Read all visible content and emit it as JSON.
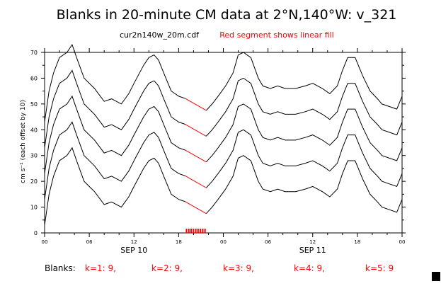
{
  "header": {
    "title": "Blanks in 20-minute CM data at 2°N,140°W: v_321",
    "filename": "cur2n140w_20m.cdf",
    "note": "Red segment shows linear fill"
  },
  "colors": {
    "trace": "#000000",
    "fill": "#ff0000",
    "axis": "#000000",
    "background": "#ffffff"
  },
  "footer": {
    "prefix": "Blanks:",
    "items": [
      "k=1: 9,",
      "k=2: 9,",
      "k=3: 9,",
      "k=4: 9,",
      "k=5: 9"
    ]
  },
  "chart_data": {
    "type": "line",
    "title": "Blanks in 20-minute CM data at 2°N,140°W: v_321",
    "ylabel": "cm s⁻¹ (each offset by 10)",
    "xlabel": "",
    "ylim": [
      0,
      70
    ],
    "xlim_hours": [
      0,
      48
    ],
    "y_ticks": [
      0,
      10,
      20,
      30,
      40,
      50,
      60,
      70
    ],
    "x_tick_hours": [
      0,
      6,
      12,
      18,
      24,
      30,
      36,
      42,
      48
    ],
    "x_tick_labels": [
      "00",
      "06",
      "12",
      "18",
      "00",
      "06",
      "12",
      "18",
      "00"
    ],
    "date_labels": [
      {
        "label": "SEP 10",
        "hour": 12
      },
      {
        "label": "SEP 11",
        "hour": 36
      }
    ],
    "blank_interval_hours": [
      18.9,
      21.7
    ],
    "gap_marker_count": 9,
    "base_curve": {
      "x": [
        0,
        0.6,
        1.2,
        2,
        3,
        3.7,
        4.3,
        5.3,
        6.7,
        8,
        9,
        10.3,
        11.3,
        12,
        13.3,
        14,
        14.7,
        15.3,
        16,
        17,
        18,
        19,
        20,
        21,
        21.7,
        22.5,
        23.3,
        24.3,
        25.3,
        26,
        26.7,
        27.7,
        28.7,
        29.3,
        30.3,
        31.3,
        32.3,
        33.7,
        35,
        36,
        37.3,
        38.3,
        39.3,
        40,
        40.7,
        41.7,
        42.7,
        43.7,
        44.7,
        45.3,
        46.3,
        47.3,
        48
      ],
      "y": [
        3,
        15,
        22,
        28,
        30,
        33,
        28,
        20,
        16,
        11,
        12,
        10,
        14,
        18,
        25,
        28,
        29,
        27,
        22,
        15,
        13,
        12,
        11,
        9,
        7.5,
        10,
        13,
        17,
        22,
        29,
        30,
        28,
        20,
        17,
        16,
        17,
        16,
        16,
        17,
        18,
        16,
        14,
        17,
        23,
        28,
        28,
        21,
        15,
        12,
        10,
        9,
        8,
        13
      ]
    },
    "series": [
      {
        "name": "k=1",
        "offset": 0
      },
      {
        "name": "k=2",
        "offset": 10
      },
      {
        "name": "k=3",
        "offset": 20
      },
      {
        "name": "k=4",
        "offset": 30
      },
      {
        "name": "k=5",
        "offset": 40
      }
    ],
    "blanks": [
      {
        "name": "k=1",
        "count": 9
      },
      {
        "name": "k=2",
        "count": 9
      },
      {
        "name": "k=3",
        "count": 9
      },
      {
        "name": "k=4",
        "count": 9
      },
      {
        "name": "k=5",
        "count": 9
      }
    ]
  }
}
